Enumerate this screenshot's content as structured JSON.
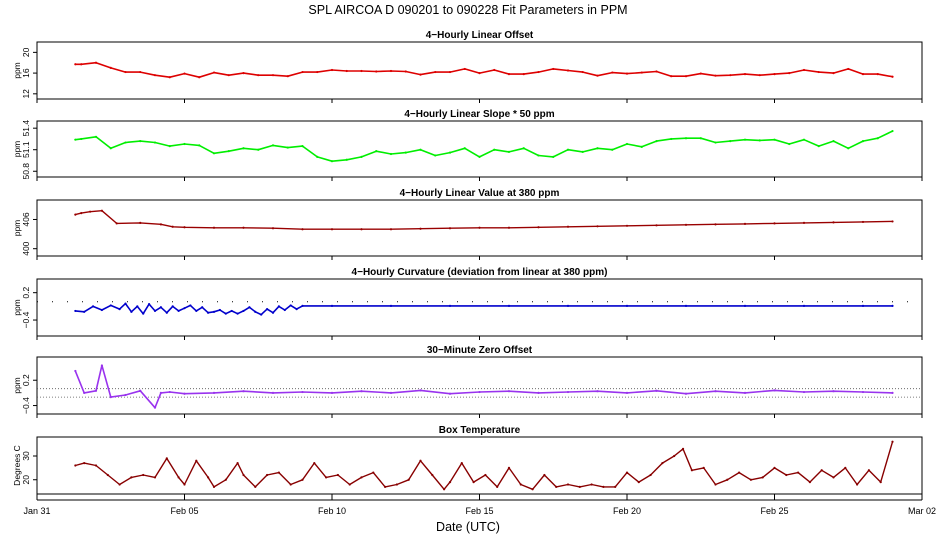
{
  "figure": {
    "title": "SPL   AIRCOA D   090201 to 090228   Fit Parameters in PPM",
    "xlabel": "Date (UTC)",
    "x_ticks": [
      "Jan 31",
      "Feb 05",
      "Feb 10",
      "Feb 15",
      "Feb 20",
      "Feb 25",
      "Mar 02"
    ]
  },
  "chart_data": [
    {
      "type": "line",
      "title": "4−Hourly Linear Offset",
      "ylabel": "ppm",
      "yticks": [
        "12",
        "16",
        "20"
      ],
      "ylim": [
        11,
        22
      ],
      "color": "#dd0000",
      "series": [
        {
          "x": [
            1.3,
            1.5,
            2.0,
            2.5,
            3.0,
            3.5,
            4.0,
            4.5,
            5.0,
            5.5,
            6.0,
            6.5,
            7.0,
            7.5,
            8.0,
            8.5,
            9.0,
            9.5,
            10.0,
            10.5,
            11.0,
            11.5,
            12.0,
            12.5,
            13.0,
            13.5,
            14.0,
            14.5,
            15.0,
            15.5,
            16.0,
            16.5,
            17.0,
            17.5,
            18.0,
            18.5,
            19.0,
            19.5,
            20.0,
            20.5,
            21.0,
            21.5,
            22.0,
            22.5,
            23.0,
            23.5,
            24.0,
            24.5,
            25.0,
            25.5,
            26.0,
            26.5,
            27.0,
            27.5,
            28.0,
            28.5,
            29.0
          ],
          "values": [
            17.7,
            17.7,
            18.0,
            17.0,
            16.2,
            16.2,
            15.6,
            15.2,
            15.9,
            15.2,
            16.1,
            15.6,
            16.0,
            15.6,
            15.6,
            15.4,
            16.2,
            16.2,
            16.6,
            16.4,
            16.4,
            16.3,
            16.4,
            16.3,
            15.7,
            16.2,
            16.2,
            16.8,
            16.0,
            16.6,
            15.8,
            15.8,
            16.2,
            16.8,
            16.5,
            16.2,
            15.5,
            16.1,
            15.9,
            16.1,
            16.3,
            15.4,
            15.4,
            15.9,
            15.5,
            15.6,
            15.8,
            15.6,
            15.8,
            16.0,
            16.6,
            16.2,
            16.0,
            16.8,
            15.8,
            15.8,
            15.3
          ]
        }
      ]
    },
    {
      "type": "line",
      "title": "4−Hourly Linear Slope * 50 ppm",
      "ylabel": "ppm",
      "yticks": [
        "50.8",
        "51.1",
        "51.4"
      ],
      "ylim": [
        50.72,
        51.5
      ],
      "color": "#00ee00",
      "series": [
        {
          "x": [
            1.3,
            1.5,
            2.0,
            2.5,
            3.0,
            3.5,
            4.0,
            4.5,
            5.0,
            5.5,
            6.0,
            6.5,
            7.0,
            7.5,
            8.0,
            8.5,
            9.0,
            9.5,
            10.0,
            10.5,
            11.0,
            11.5,
            12.0,
            12.5,
            13.0,
            13.5,
            14.0,
            14.5,
            15.0,
            15.5,
            16.0,
            16.5,
            17.0,
            17.5,
            18.0,
            18.5,
            19.0,
            19.5,
            20.0,
            20.5,
            21.0,
            21.5,
            22.0,
            22.5,
            23.0,
            23.5,
            24.0,
            24.5,
            25.0,
            25.5,
            26.0,
            26.5,
            27.0,
            27.5,
            28.0,
            28.5,
            29.0
          ],
          "values": [
            51.24,
            51.25,
            51.28,
            51.12,
            51.2,
            51.22,
            51.2,
            51.15,
            51.18,
            51.16,
            51.05,
            51.08,
            51.12,
            51.1,
            51.16,
            51.13,
            51.15,
            51.0,
            50.94,
            50.96,
            51.0,
            51.08,
            51.04,
            51.06,
            51.1,
            51.02,
            51.06,
            51.12,
            51.0,
            51.1,
            51.07,
            51.12,
            51.02,
            51.0,
            51.1,
            51.07,
            51.12,
            51.1,
            51.18,
            51.14,
            51.22,
            51.25,
            51.26,
            51.26,
            51.2,
            51.22,
            51.24,
            51.23,
            51.24,
            51.18,
            51.24,
            51.15,
            51.22,
            51.12,
            51.22,
            51.26,
            51.36
          ]
        }
      ]
    },
    {
      "type": "line",
      "title": "4−Hourly Linear Value at 380 ppm",
      "ylabel": "ppm",
      "yticks": [
        "400",
        "406"
      ],
      "ylim": [
        398.5,
        410
      ],
      "color": "#990000",
      "series": [
        {
          "x": [
            1.3,
            1.5,
            1.8,
            2.2,
            2.7,
            3.5,
            4.2,
            4.6,
            5.0,
            6.0,
            7.0,
            8.0,
            9.0,
            10.0,
            11.0,
            12.0,
            13.0,
            14.0,
            15.0,
            16.0,
            17.0,
            18.0,
            19.0,
            20.0,
            21.0,
            22.0,
            23.0,
            24.0,
            25.0,
            26.0,
            27.0,
            28.0,
            29.0
          ],
          "values": [
            407.0,
            407.3,
            407.6,
            407.8,
            405.2,
            405.3,
            405.0,
            404.5,
            404.4,
            404.3,
            404.3,
            404.2,
            404.0,
            404.0,
            404.0,
            404.0,
            404.1,
            404.2,
            404.3,
            404.3,
            404.4,
            404.5,
            404.6,
            404.7,
            404.8,
            404.9,
            405.0,
            405.1,
            405.2,
            405.3,
            405.4,
            405.5,
            405.6
          ]
        }
      ]
    },
    {
      "type": "line",
      "title": "4−Hourly Curvature (deviation from linear at 380 ppm)",
      "ylabel": "ppm",
      "yticks": [
        "−0.4",
        "0.2"
      ],
      "ylim": [
        -0.75,
        0.5
      ],
      "color": "#0000cc",
      "series": [
        {
          "x": [
            1.3,
            1.6,
            1.9,
            2.2,
            2.5,
            2.8,
            3.0,
            3.2,
            3.4,
            3.6,
            3.8,
            4.0,
            4.2,
            4.4,
            4.6,
            4.8,
            5.0,
            5.2,
            5.4,
            5.6,
            5.8,
            6.0,
            6.2,
            6.4,
            6.6,
            6.8,
            7.0,
            7.2,
            7.4,
            7.6,
            7.8,
            8.0,
            8.2,
            8.4,
            8.6,
            8.8,
            9.0,
            10.0,
            12.0,
            14.0,
            16.0,
            18.0,
            20.0,
            22.0,
            24.0,
            26.0,
            28.0,
            29.0
          ],
          "values": [
            -0.2,
            -0.22,
            -0.1,
            -0.18,
            -0.08,
            -0.16,
            -0.04,
            -0.22,
            -0.1,
            -0.26,
            -0.05,
            -0.2,
            -0.12,
            -0.24,
            -0.1,
            -0.2,
            -0.14,
            -0.08,
            -0.2,
            -0.12,
            -0.24,
            -0.22,
            -0.18,
            -0.26,
            -0.2,
            -0.26,
            -0.2,
            -0.12,
            -0.22,
            -0.28,
            -0.16,
            -0.24,
            -0.1,
            -0.18,
            -0.08,
            -0.16,
            -0.09,
            -0.09,
            -0.09,
            -0.09,
            -0.09,
            -0.09,
            -0.09,
            -0.09,
            -0.09,
            -0.09,
            -0.09,
            -0.09
          ]
        }
      ]
    },
    {
      "type": "line",
      "title": "30−Minute Zero Offset",
      "ylabel": "ppm",
      "yticks": [
        "−0.4",
        "0.2"
      ],
      "ylim": [
        -0.6,
        0.75
      ],
      "color": "#9933ee",
      "series": [
        {
          "x": [
            1.3,
            1.6,
            2.0,
            2.2,
            2.5,
            3.0,
            3.5,
            4.0,
            4.2,
            4.5,
            5.0,
            6.0,
            7.0,
            8.0,
            9.0,
            10.0,
            11.0,
            12.0,
            13.0,
            14.0,
            15.0,
            16.0,
            17.0,
            18.0,
            19.0,
            20.0,
            21.0,
            22.0,
            23.0,
            24.0,
            25.0,
            26.0,
            27.0,
            28.0,
            29.0
          ],
          "values": [
            0.42,
            -0.1,
            -0.05,
            0.55,
            -0.2,
            -0.15,
            -0.05,
            -0.45,
            -0.1,
            -0.08,
            -0.12,
            -0.1,
            -0.06,
            -0.1,
            -0.08,
            -0.1,
            -0.06,
            -0.1,
            -0.04,
            -0.12,
            -0.08,
            -0.06,
            -0.1,
            -0.08,
            -0.06,
            -0.1,
            -0.05,
            -0.12,
            -0.06,
            -0.1,
            -0.04,
            -0.08,
            -0.06,
            -0.08,
            -0.1
          ]
        }
      ]
    },
    {
      "type": "line",
      "title": "Box Temperature",
      "ylabel": "Degrees C",
      "yticks": [
        "20",
        "30"
      ],
      "ylim": [
        14,
        38
      ],
      "color": "#880000",
      "series": [
        {
          "x": [
            1.3,
            1.6,
            2.0,
            2.4,
            2.8,
            3.2,
            3.6,
            4.0,
            4.4,
            4.8,
            5.0,
            5.4,
            5.8,
            6.0,
            6.4,
            6.8,
            7.0,
            7.4,
            7.8,
            8.2,
            8.6,
            9.0,
            9.4,
            9.8,
            10.2,
            10.6,
            11.0,
            11.4,
            11.8,
            12.2,
            12.6,
            13.0,
            13.4,
            13.8,
            14.0,
            14.4,
            14.8,
            15.2,
            15.6,
            16.0,
            16.4,
            16.8,
            17.2,
            17.6,
            18.0,
            18.4,
            18.8,
            19.2,
            19.6,
            20.0,
            20.4,
            20.8,
            21.2,
            21.6,
            21.9,
            22.2,
            22.6,
            23.0,
            23.4,
            23.8,
            24.2,
            24.6,
            25.0,
            25.4,
            25.8,
            26.2,
            26.6,
            27.0,
            27.4,
            27.8,
            28.2,
            28.6,
            29.0
          ],
          "values": [
            26,
            27,
            26,
            22,
            18,
            21,
            22,
            21,
            29,
            21,
            18,
            28,
            21,
            17,
            20,
            27,
            22,
            17,
            22,
            23,
            18,
            20,
            27,
            21,
            22,
            18,
            21,
            23,
            17,
            18,
            20,
            28,
            22,
            16,
            19,
            27,
            19,
            22,
            17,
            25,
            18,
            16,
            22,
            17,
            18,
            17,
            18,
            17,
            17,
            23,
            19,
            22,
            27,
            30,
            33,
            24,
            25,
            18,
            20,
            23,
            20,
            21,
            25,
            22,
            23,
            19,
            24,
            21,
            25,
            18,
            24,
            19,
            36
          ]
        }
      ]
    }
  ]
}
